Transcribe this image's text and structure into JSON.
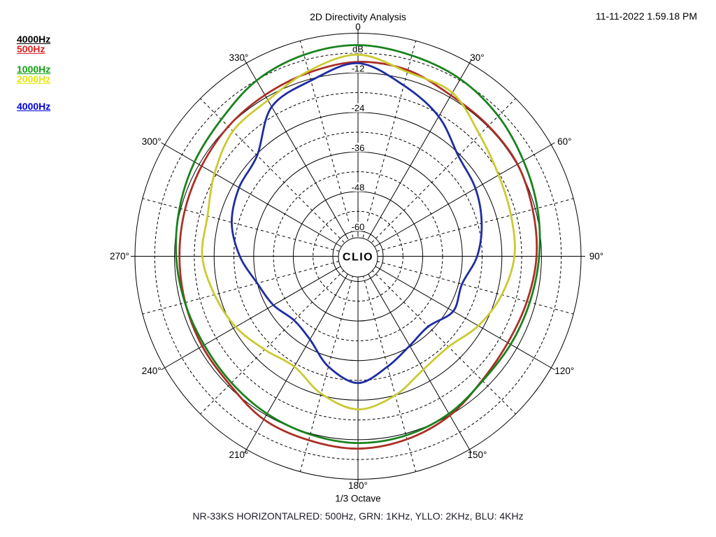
{
  "header": {
    "title": "2D Directivity Analysis",
    "timestamp": "11-11-2022 1.59.18 PM"
  },
  "legend": {
    "items": [
      {
        "label": "4000Hz",
        "color": "#000000"
      },
      {
        "label": "500Hz",
        "color": "#e02020"
      },
      {
        "label": "1000Hz",
        "color": "#10a010"
      },
      {
        "label": "2000Hz",
        "color": "#e6e610"
      },
      {
        "label": "4000Hz",
        "color": "#0000dd"
      }
    ]
  },
  "footer": {
    "caption": "NR-33KS HORIZONTALRED: 500Hz, GRN: 1KHz, YLLO: 2KHz, BLU: 4KHz",
    "octave_label": "1/3 Octave"
  },
  "center_logo": "CLIO",
  "chart_data": {
    "type": "polar",
    "title": "2D Directivity Analysis",
    "radial_axis": {
      "unit_label": "dB",
      "outer_db": 0,
      "ring_step_db": 6,
      "min_ring_db": -60,
      "labeled_rings": [
        -12,
        -24,
        -36,
        -48,
        -60
      ],
      "unit_label_at_db": -6
    },
    "angle_labels": [
      {
        "angle": 0,
        "label": "0"
      },
      {
        "angle": 30,
        "label": "30°"
      },
      {
        "angle": 60,
        "label": "60°"
      },
      {
        "angle": 90,
        "label": "90°"
      },
      {
        "angle": 120,
        "label": "120°"
      },
      {
        "angle": 150,
        "label": "150°"
      },
      {
        "angle": 180,
        "label": "180°"
      },
      {
        "angle": 210,
        "label": "210°"
      },
      {
        "angle": 240,
        "label": "240°"
      },
      {
        "angle": 270,
        "label": "270°"
      },
      {
        "angle": 300,
        "label": "300°"
      },
      {
        "angle": 330,
        "label": "330°"
      }
    ],
    "grid": {
      "spoke_step_deg": 15,
      "solid_spoke_step_deg": 30,
      "solid_ring_step_db": 12
    },
    "angles_deg": [
      0,
      15,
      30,
      45,
      60,
      75,
      90,
      105,
      120,
      135,
      150,
      165,
      180,
      195,
      210,
      225,
      240,
      255,
      270,
      285,
      300,
      315,
      330,
      345
    ],
    "series": [
      {
        "name": "500Hz",
        "color": "#ab2f26",
        "values_db": [
          -8.7,
          -9.2,
          -11.3,
          -11.7,
          -11.8,
          -12.8,
          -13.5,
          -14.6,
          -15.2,
          -14.4,
          -11.9,
          -10.2,
          -9.3,
          -9.9,
          -10.5,
          -12.6,
          -13.1,
          -13.4,
          -13.5,
          -13.3,
          -12.9,
          -12.0,
          -11.2,
          -10.0
        ]
      },
      {
        "name": "1KHz",
        "color": "#1a821e",
        "values_db": [
          -3.6,
          -4.6,
          -5.6,
          -7.5,
          -9.7,
          -11.3,
          -12.7,
          -13.7,
          -14.2,
          -14.2,
          -12.5,
          -11.4,
          -11.0,
          -11.7,
          -12.5,
          -13.4,
          -13.8,
          -13.3,
          -12.5,
          -11.6,
          -10.4,
          -9.0,
          -6.1,
          -4.4
        ]
      },
      {
        "name": "2KHz",
        "color": "#caca32",
        "values_db": [
          -6.5,
          -9.8,
          -10.4,
          -15.5,
          -18.4,
          -19.6,
          -20.2,
          -22.5,
          -25.5,
          -28.8,
          -28.0,
          -24.0,
          -21.2,
          -24.5,
          -29.0,
          -27.6,
          -24.8,
          -22.6,
          -20.4,
          -20.4,
          -17.4,
          -14.0,
          -13.0,
          -9.5
        ]
      },
      {
        "name": "4KHz",
        "color": "#1e2da0",
        "values_db": [
          -9.1,
          -14.0,
          -18.7,
          -24.6,
          -26.5,
          -28.8,
          -31.5,
          -35.0,
          -34.3,
          -37.5,
          -36.3,
          -33.0,
          -29.2,
          -33.0,
          -38.5,
          -40.2,
          -38.0,
          -36.0,
          -31.8,
          -28.0,
          -26.0,
          -24.4,
          -15.3,
          -12.5
        ]
      }
    ]
  }
}
